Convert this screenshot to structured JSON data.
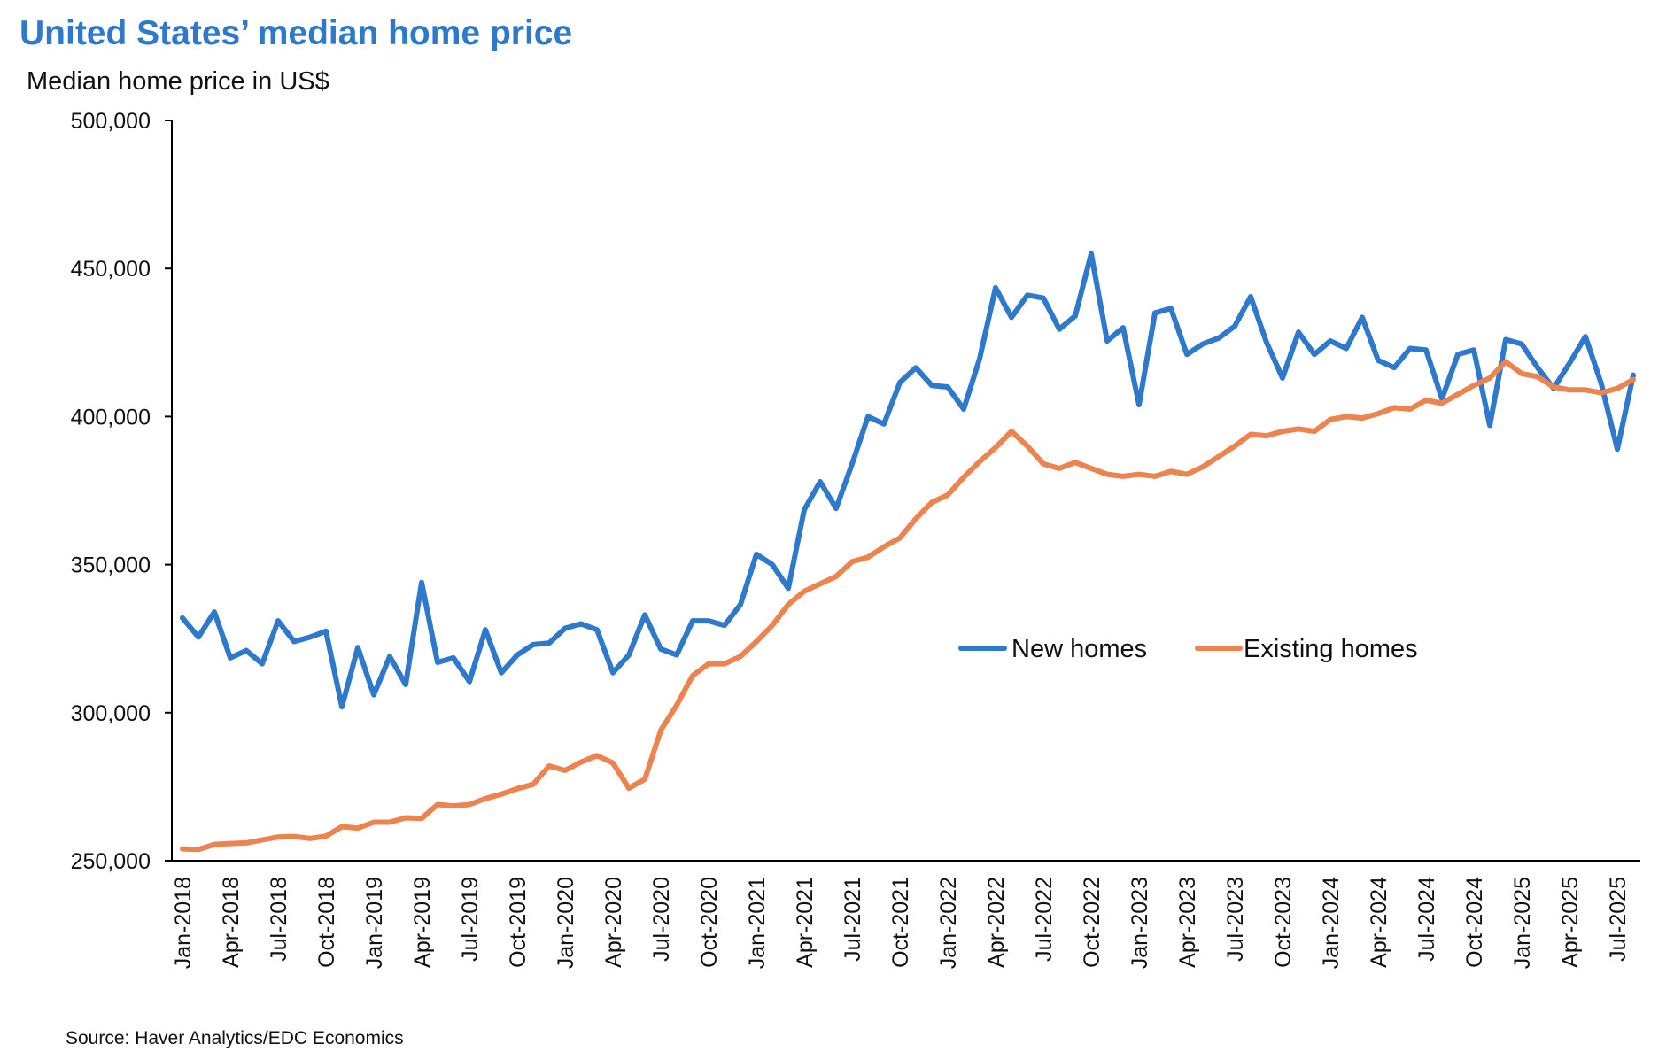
{
  "chart_data": {
    "type": "line",
    "title": "United States’ median home price",
    "subtitle": "Median home price in US$",
    "source": "Source: Haver Analytics/EDC Economics",
    "xlabel": "",
    "ylabel": "",
    "ylim": [
      250000,
      500000
    ],
    "yticks": [
      250000,
      300000,
      350000,
      400000,
      450000,
      500000
    ],
    "ytick_labels": [
      "250,000",
      "300,000",
      "350,000",
      "400,000",
      "450,000",
      "500,000"
    ],
    "x_start": "Jan-2018",
    "x_end": "Aug-2025",
    "xtick_labels": [
      "Jan-2018",
      "Apr-2018",
      "Jul-2018",
      "Oct-2018",
      "Jan-2019",
      "Apr-2019",
      "Jul-2019",
      "Oct-2019",
      "Jan-2020",
      "Apr-2020",
      "Jul-2020",
      "Oct-2020",
      "Jan-2021",
      "Apr-2021",
      "Jul-2021",
      "Oct-2021",
      "Jan-2022",
      "Apr-2022",
      "Jul-2022",
      "Oct-2022",
      "Jan-2023",
      "Apr-2023",
      "Jul-2023",
      "Oct-2023",
      "Jan-2024",
      "Apr-2024",
      "Jul-2024",
      "Oct-2024",
      "Jan-2025",
      "Apr-2025",
      "Jul-2025"
    ],
    "legend_position": "center-right",
    "grid": false,
    "series": [
      {
        "name": "New homes",
        "color": "#2e79cc",
        "values": [
          332000,
          325500,
          334000,
          318500,
          321000,
          316500,
          331000,
          324000,
          325500,
          327500,
          302000,
          322000,
          306000,
          319000,
          309500,
          344000,
          317000,
          318500,
          310500,
          328000,
          313500,
          319500,
          323000,
          323500,
          328500,
          330000,
          328000,
          313500,
          319500,
          333000,
          321500,
          319500,
          331000,
          331000,
          329500,
          336500,
          353500,
          350000,
          342000,
          368500,
          378000,
          369000,
          384000,
          400000,
          397500,
          411500,
          416500,
          410500,
          410000,
          402500,
          419500,
          443500,
          433500,
          441000,
          440000,
          429500,
          434000,
          455000,
          425500,
          430000,
          404000,
          435000,
          436500,
          421000,
          424500,
          426500,
          430500,
          440500,
          425000,
          413000,
          428500,
          421000,
          425500,
          423000,
          433500,
          419000,
          416500,
          423000,
          422500,
          406000,
          421000,
          422500,
          397000,
          426000,
          424500,
          416500,
          409500,
          418000,
          427000,
          411000,
          389000,
          414000
        ]
      },
      {
        "name": "Existing homes",
        "color": "#ed834e",
        "values": [
          254000,
          253800,
          255500,
          255800,
          256000,
          257000,
          258000,
          258200,
          257500,
          258300,
          261500,
          261000,
          263000,
          263000,
          264500,
          264300,
          269000,
          268500,
          269000,
          271000,
          272500,
          274300,
          275800,
          282000,
          280500,
          283300,
          285500,
          283000,
          274500,
          277500,
          294000,
          302500,
          312500,
          316500,
          316500,
          319000,
          324000,
          329500,
          336500,
          341000,
          343500,
          346000,
          351000,
          352500,
          356000,
          359000,
          365500,
          371000,
          373500,
          379500,
          384800,
          389500,
          395000,
          390000,
          384000,
          382500,
          384500,
          382500,
          380500,
          379800,
          380500,
          379800,
          381500,
          380500,
          383000,
          386500,
          390000,
          394000,
          393500,
          395000,
          395800,
          395000,
          399000,
          400000,
          399500,
          401000,
          403000,
          402500,
          405500,
          404500,
          407500,
          410500,
          413000,
          418500,
          414500,
          413500,
          410000,
          409000,
          409000,
          408000,
          409500,
          412500
        ]
      }
    ]
  }
}
